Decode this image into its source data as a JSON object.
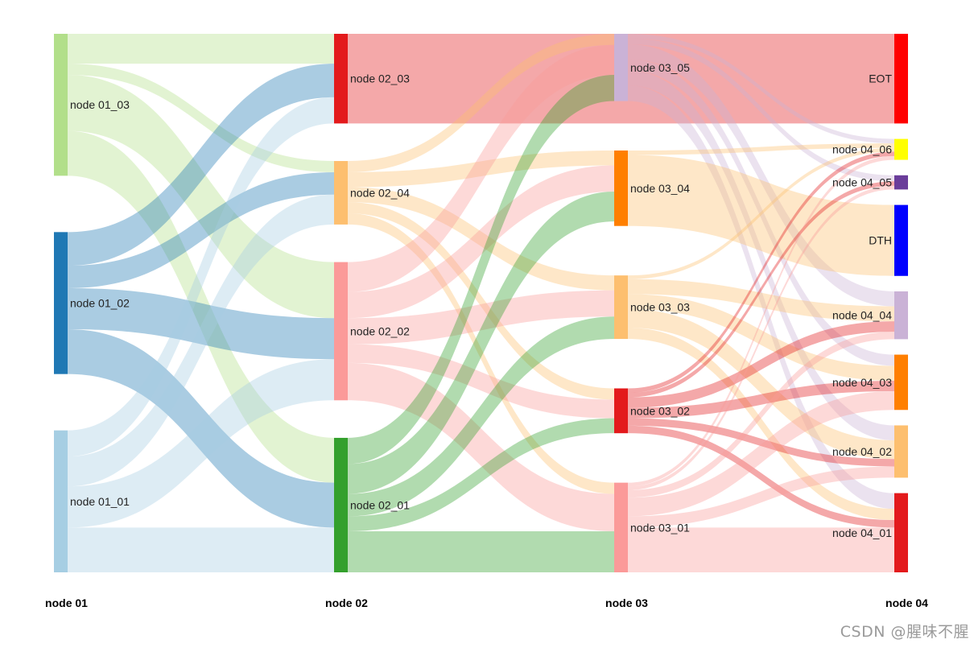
{
  "chart_data": {
    "type": "sankey",
    "title": "",
    "columns": [
      "node 01",
      "node 02",
      "node 03",
      "node 04"
    ],
    "nodes": [
      {
        "id": "node 01_03",
        "column": 0,
        "color": "#b2df8a",
        "flow": "#b2df8a"
      },
      {
        "id": "node 01_02",
        "column": 0,
        "color": "#1f78b4",
        "flow": "#1f78b4"
      },
      {
        "id": "node 01_01",
        "column": 0,
        "color": "#a6cee3",
        "flow": "#a6cee3"
      },
      {
        "id": "node 02_03",
        "column": 1,
        "color": "#e31a1c",
        "flow": "#e31a1c"
      },
      {
        "id": "node 02_04",
        "column": 1,
        "color": "#fdbf6f",
        "flow": "#fdbf6f"
      },
      {
        "id": "node 02_02",
        "column": 1,
        "color": "#fb9a99",
        "flow": "#fb9a99"
      },
      {
        "id": "node 02_01",
        "column": 1,
        "color": "#33a02c",
        "flow": "#33a02c"
      },
      {
        "id": "node 03_05",
        "column": 2,
        "color": "#cab2d6",
        "flow": "#cab2d6"
      },
      {
        "id": "node 03_04",
        "column": 2,
        "color": "#ff7f00",
        "flow": "#fdbf6f"
      },
      {
        "id": "node 03_03",
        "column": 2,
        "color": "#fdbf6f",
        "flow": "#fdbf6f"
      },
      {
        "id": "node 03_02",
        "column": 2,
        "color": "#e31a1c",
        "flow": "#e31a1c"
      },
      {
        "id": "node 03_01",
        "column": 2,
        "color": "#fb9a99",
        "flow": "#fb9a99"
      },
      {
        "id": "EOT",
        "column": 3,
        "color": "#ff0000"
      },
      {
        "id": "node 04_06",
        "column": 3,
        "color": "#ffff00"
      },
      {
        "id": "node 04_05",
        "column": 3,
        "color": "#6a3d9a"
      },
      {
        "id": "DTH",
        "column": 3,
        "color": "#0000ff"
      },
      {
        "id": "node 04_04",
        "column": 3,
        "color": "#cab2d6"
      },
      {
        "id": "node 04_03",
        "column": 3,
        "color": "#ff7f00"
      },
      {
        "id": "node 04_02",
        "column": 3,
        "color": "#fdbf6f"
      },
      {
        "id": "node 04_01",
        "column": 3,
        "color": "#e31a1c"
      }
    ],
    "links": [
      {
        "source": "node 01_03",
        "target": "node 02_03",
        "value": 40
      },
      {
        "source": "node 01_03",
        "target": "node 02_04",
        "value": 15
      },
      {
        "source": "node 01_03",
        "target": "node 02_02",
        "value": 75
      },
      {
        "source": "node 01_03",
        "target": "node 02_01",
        "value": 60
      },
      {
        "source": "node 01_02",
        "target": "node 02_03",
        "value": 45
      },
      {
        "source": "node 01_02",
        "target": "node 02_04",
        "value": 30
      },
      {
        "source": "node 01_02",
        "target": "node 02_02",
        "value": 55
      },
      {
        "source": "node 01_02",
        "target": "node 02_01",
        "value": 60
      },
      {
        "source": "node 01_01",
        "target": "node 02_03",
        "value": 35
      },
      {
        "source": "node 01_01",
        "target": "node 02_04",
        "value": 40
      },
      {
        "source": "node 01_01",
        "target": "node 02_02",
        "value": 55
      },
      {
        "source": "node 01_01",
        "target": "node 02_01",
        "value": 60
      },
      {
        "source": "node 02_03",
        "target": "EOT",
        "value": 120
      },
      {
        "source": "node 02_04",
        "target": "node 03_05",
        "value": 15
      },
      {
        "source": "node 02_04",
        "target": "node 03_04",
        "value": 20
      },
      {
        "source": "node 02_04",
        "target": "node 03_03",
        "value": 20
      },
      {
        "source": "node 02_04",
        "target": "node 03_02",
        "value": 15
      },
      {
        "source": "node 02_04",
        "target": "node 03_01",
        "value": 15
      },
      {
        "source": "node 02_02",
        "target": "node 03_05",
        "value": 40
      },
      {
        "source": "node 02_02",
        "target": "node 03_04",
        "value": 35
      },
      {
        "source": "node 02_02",
        "target": "node 03_03",
        "value": 35
      },
      {
        "source": "node 02_02",
        "target": "node 03_02",
        "value": 25
      },
      {
        "source": "node 02_02",
        "target": "node 03_01",
        "value": 50
      },
      {
        "source": "node 02_01",
        "target": "node 03_05",
        "value": 35
      },
      {
        "source": "node 02_01",
        "target": "node 03_04",
        "value": 40
      },
      {
        "source": "node 02_01",
        "target": "node 03_03",
        "value": 30
      },
      {
        "source": "node 02_01",
        "target": "node 03_02",
        "value": 20
      },
      {
        "source": "node 02_01",
        "target": "node 03_01",
        "value": 55
      },
      {
        "source": "node 03_05",
        "target": "node 04_06",
        "value": 6
      },
      {
        "source": "node 03_05",
        "target": "node 04_05",
        "value": 8
      },
      {
        "source": "node 03_05",
        "target": "node 04_04",
        "value": 20
      },
      {
        "source": "node 03_05",
        "target": "node 04_03",
        "value": 15
      },
      {
        "source": "node 03_05",
        "target": "node 04_02",
        "value": 20
      },
      {
        "source": "node 03_05",
        "target": "node 04_01",
        "value": 21
      },
      {
        "source": "node 03_04",
        "target": "node 04_06",
        "value": 6
      },
      {
        "source": "node 03_04",
        "target": "DTH",
        "value": 95
      },
      {
        "source": "node 03_03",
        "target": "node 04_06",
        "value": 5
      },
      {
        "source": "node 03_03",
        "target": "node 04_04",
        "value": 20
      },
      {
        "source": "node 03_03",
        "target": "node 04_03",
        "value": 20
      },
      {
        "source": "node 03_03",
        "target": "node 04_02",
        "value": 25
      },
      {
        "source": "node 03_03",
        "target": "node 04_01",
        "value": 15
      },
      {
        "source": "node 03_02",
        "target": "node 04_06",
        "value": 6
      },
      {
        "source": "node 03_02",
        "target": "node 04_05",
        "value": 6
      },
      {
        "source": "node 03_02",
        "target": "node 04_04",
        "value": 14
      },
      {
        "source": "node 03_02",
        "target": "node 04_03",
        "value": 14
      },
      {
        "source": "node 03_02",
        "target": "node 04_02",
        "value": 10
      },
      {
        "source": "node 03_02",
        "target": "node 04_01",
        "value": 10
      },
      {
        "source": "node 03_01",
        "target": "node 04_06",
        "value": 5
      },
      {
        "source": "node 03_01",
        "target": "node 04_05",
        "value": 5
      },
      {
        "source": "node 03_01",
        "target": "node 04_04",
        "value": 10
      },
      {
        "source": "node 03_01",
        "target": "node 04_03",
        "value": 25
      },
      {
        "source": "node 03_01",
        "target": "node 04_02",
        "value": 15
      },
      {
        "source": "node 03_01",
        "target": "node 04_01",
        "value": 60
      }
    ]
  },
  "watermark": "CSDN @腥味不腥"
}
